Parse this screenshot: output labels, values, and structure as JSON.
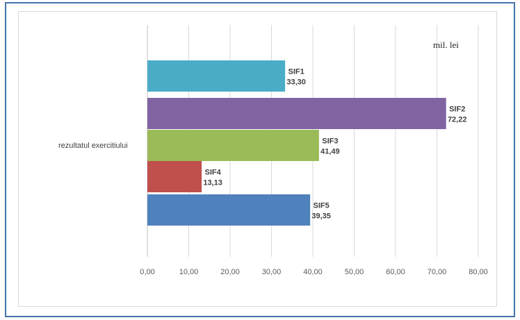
{
  "chart_data": {
    "type": "bar",
    "orientation": "horizontal",
    "unit_label": "mil. lei",
    "categories": [
      "rezultatul exercitiului"
    ],
    "series": [
      {
        "name": "SIF1",
        "values": [
          33.3
        ],
        "value_label": "33,30",
        "color": "#4bacc6"
      },
      {
        "name": "SIF2",
        "values": [
          72.22
        ],
        "value_label": "72,22",
        "color": "#8064a2"
      },
      {
        "name": "SIF3",
        "values": [
          41.49
        ],
        "value_label": "41,49",
        "color": "#9bbb59"
      },
      {
        "name": "SIF4",
        "values": [
          13.13
        ],
        "value_label": "13,13",
        "color": "#c0504d"
      },
      {
        "name": "SIF5",
        "values": [
          39.35
        ],
        "value_label": "39,35",
        "color": "#4f81bd"
      }
    ],
    "xlim": [
      0,
      80
    ],
    "x_ticks": [
      "0,00",
      "10,00",
      "20,00",
      "30,00",
      "40,00",
      "50,00",
      "60,00",
      "70,00",
      "80,00"
    ],
    "grid": true,
    "legend": "none"
  }
}
